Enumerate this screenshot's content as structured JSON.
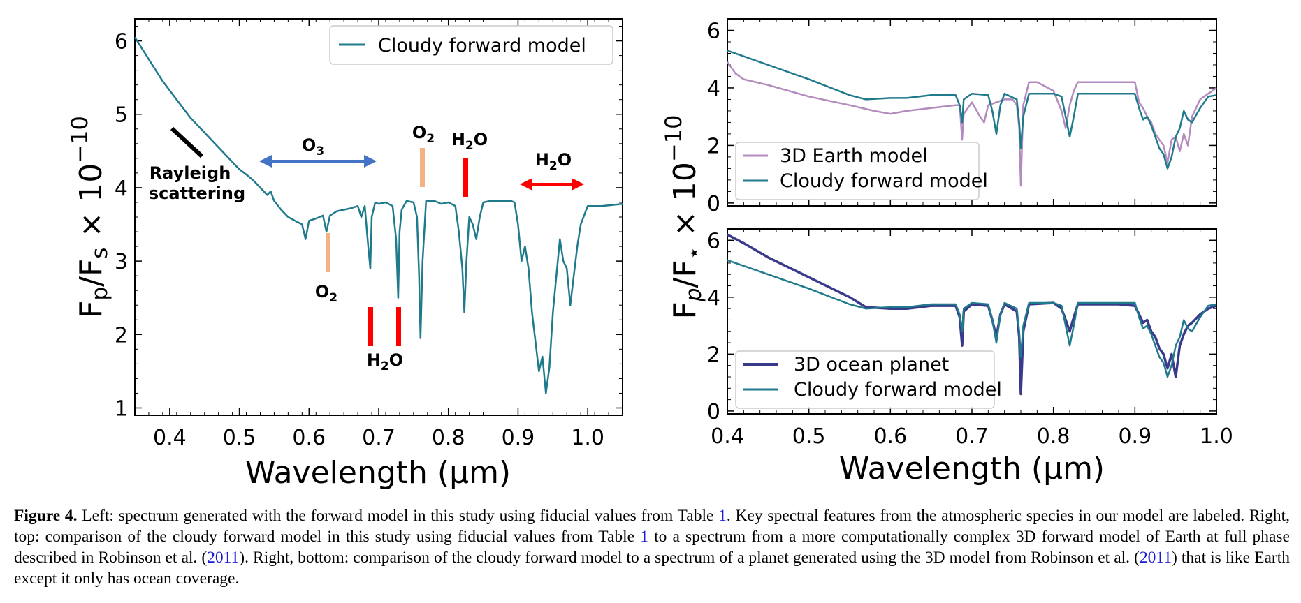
{
  "chart_data": [
    {
      "type": "line",
      "panel": "left",
      "xlabel": "Wavelength (μm)",
      "ylabel_main": "F",
      "ylabel_sub1": "p",
      "ylabel_mid": "/F",
      "ylabel_sub2": "s",
      "ylabel_times": " × 10",
      "ylabel_exp": "−10",
      "xlim": [
        0.35,
        1.05
      ],
      "ylim": [
        0.9,
        6.3
      ],
      "xticks": [
        "0.4",
        "0.5",
        "0.6",
        "0.7",
        "0.8",
        "0.9",
        "1.0"
      ],
      "yticks": [
        "1",
        "2",
        "3",
        "4",
        "5",
        "6"
      ],
      "legend_position": "top-right",
      "series": [
        {
          "name": "Cloudy forward model",
          "color": "#1f7a8c",
          "x": [
            0.35,
            0.37,
            0.39,
            0.41,
            0.43,
            0.45,
            0.47,
            0.49,
            0.5,
            0.51,
            0.52,
            0.53,
            0.54,
            0.545,
            0.55,
            0.56,
            0.57,
            0.58,
            0.59,
            0.595,
            0.6,
            0.61,
            0.62,
            0.625,
            0.63,
            0.64,
            0.65,
            0.66,
            0.67,
            0.675,
            0.68,
            0.685,
            0.688,
            0.69,
            0.695,
            0.7,
            0.71,
            0.72,
            0.725,
            0.728,
            0.73,
            0.733,
            0.74,
            0.75,
            0.755,
            0.758,
            0.76,
            0.763,
            0.768,
            0.78,
            0.79,
            0.8,
            0.81,
            0.815,
            0.82,
            0.823,
            0.826,
            0.83,
            0.835,
            0.84,
            0.845,
            0.85,
            0.86,
            0.87,
            0.88,
            0.89,
            0.895,
            0.9,
            0.905,
            0.91,
            0.915,
            0.92,
            0.925,
            0.93,
            0.935,
            0.94,
            0.945,
            0.95,
            0.955,
            0.96,
            0.965,
            0.97,
            0.975,
            0.98,
            0.985,
            0.99,
            1.0,
            1.02,
            1.05
          ],
          "y": [
            6.05,
            5.75,
            5.45,
            5.2,
            4.95,
            4.75,
            4.55,
            4.35,
            4.25,
            4.18,
            4.1,
            4.0,
            3.9,
            3.95,
            3.82,
            3.7,
            3.6,
            3.55,
            3.5,
            3.3,
            3.55,
            3.58,
            3.62,
            3.4,
            3.62,
            3.68,
            3.7,
            3.72,
            3.75,
            3.6,
            3.75,
            3.2,
            2.9,
            3.6,
            3.8,
            3.78,
            3.8,
            3.75,
            3.3,
            2.5,
            3.4,
            3.7,
            3.82,
            3.8,
            3.6,
            2.8,
            1.95,
            3.0,
            3.82,
            3.82,
            3.78,
            3.8,
            3.75,
            3.4,
            2.9,
            2.3,
            3.0,
            3.6,
            3.5,
            3.3,
            3.6,
            3.8,
            3.82,
            3.82,
            3.82,
            3.82,
            3.8,
            3.5,
            3.0,
            3.2,
            2.9,
            2.3,
            1.9,
            1.5,
            1.7,
            1.2,
            1.55,
            2.3,
            2.8,
            3.3,
            3.0,
            2.9,
            2.4,
            2.8,
            3.2,
            3.5,
            3.75,
            3.75,
            3.78
          ]
        }
      ],
      "annotations": [
        {
          "text": "Rayleigh",
          "text2": "scattering"
        },
        {
          "text": "O",
          "sub": "3"
        },
        {
          "text": "O",
          "sub": "2"
        },
        {
          "text": "O",
          "sub": "2"
        },
        {
          "text": "H",
          "sub": "2",
          "tail": "O"
        },
        {
          "text": "H",
          "sub": "2",
          "tail": "O"
        },
        {
          "text": "H",
          "sub": "2",
          "tail": "O"
        }
      ],
      "colors": {
        "arrow_o3": "#4472c4",
        "bar_o2": "#f4b183",
        "marker_h2o": "#ff0000",
        "rayleigh_mark": "#000000"
      }
    },
    {
      "type": "line",
      "panel": "right-top",
      "xlim": [
        0.4,
        1.0
      ],
      "ylim": [
        -0.1,
        6.4
      ],
      "yticks": [
        "0",
        "2",
        "4",
        "6"
      ],
      "legend_position": "bottom-left",
      "series": [
        {
          "name": "3D Earth model",
          "color": "#b38bbf",
          "x": [
            0.4,
            0.41,
            0.42,
            0.45,
            0.5,
            0.55,
            0.58,
            0.6,
            0.62,
            0.65,
            0.68,
            0.685,
            0.688,
            0.69,
            0.7,
            0.71,
            0.715,
            0.72,
            0.73,
            0.74,
            0.75,
            0.755,
            0.758,
            0.76,
            0.763,
            0.77,
            0.78,
            0.8,
            0.81,
            0.815,
            0.82,
            0.825,
            0.83,
            0.85,
            0.88,
            0.9,
            0.905,
            0.91,
            0.915,
            0.92,
            0.925,
            0.93,
            0.935,
            0.94,
            0.945,
            0.95,
            0.955,
            0.96,
            0.965,
            0.97,
            0.98,
            0.99,
            1.0
          ],
          "y": [
            4.9,
            4.5,
            4.3,
            4.1,
            3.7,
            3.4,
            3.2,
            3.1,
            3.2,
            3.3,
            3.4,
            3.4,
            2.2,
            3.1,
            3.5,
            3.0,
            2.8,
            3.4,
            3.5,
            3.6,
            3.6,
            3.4,
            2.6,
            0.6,
            3.4,
            4.2,
            4.2,
            3.9,
            3.2,
            2.6,
            3.4,
            3.9,
            4.2,
            4.2,
            4.2,
            4.2,
            3.5,
            3.3,
            3.0,
            2.8,
            2.4,
            2.2,
            2.0,
            1.4,
            2.2,
            2.3,
            1.8,
            2.4,
            2.0,
            3.0,
            3.6,
            3.8,
            4.0
          ]
        },
        {
          "name": "Cloudy forward model",
          "color": "#1f7a8c",
          "x": [
            0.4,
            0.45,
            0.5,
            0.55,
            0.57,
            0.6,
            0.62,
            0.65,
            0.68,
            0.685,
            0.688,
            0.69,
            0.7,
            0.72,
            0.725,
            0.73,
            0.735,
            0.74,
            0.755,
            0.758,
            0.76,
            0.763,
            0.77,
            0.8,
            0.81,
            0.815,
            0.82,
            0.825,
            0.83,
            0.85,
            0.88,
            0.9,
            0.905,
            0.91,
            0.915,
            0.92,
            0.925,
            0.93,
            0.935,
            0.94,
            0.945,
            0.95,
            0.955,
            0.96,
            0.965,
            0.97,
            0.98,
            0.99,
            1.0
          ],
          "y": [
            5.3,
            4.8,
            4.3,
            3.75,
            3.6,
            3.65,
            3.65,
            3.75,
            3.75,
            3.4,
            2.8,
            3.6,
            3.8,
            3.75,
            3.2,
            2.4,
            3.4,
            3.8,
            3.6,
            2.8,
            1.9,
            3.0,
            3.8,
            3.8,
            3.7,
            3.0,
            2.3,
            3.0,
            3.8,
            3.8,
            3.8,
            3.8,
            3.3,
            2.9,
            3.0,
            2.7,
            2.3,
            1.9,
            1.7,
            1.2,
            1.6,
            2.3,
            2.6,
            3.2,
            2.9,
            2.8,
            3.3,
            3.7,
            3.75
          ]
        }
      ]
    },
    {
      "type": "line",
      "panel": "right-bottom",
      "xlabel": "Wavelength (μm)",
      "ylabel_main": "F",
      "ylabel_sub1": "p",
      "ylabel_mid": "/F",
      "ylabel_sub2": "⋆",
      "ylabel_times": " × 10",
      "ylabel_exp": "−10",
      "xlim": [
        0.4,
        1.0
      ],
      "ylim": [
        -0.1,
        6.4
      ],
      "xticks": [
        "0.4",
        "0.5",
        "0.6",
        "0.7",
        "0.8",
        "0.9",
        "1.0"
      ],
      "yticks": [
        "0",
        "2",
        "4",
        "6"
      ],
      "legend_position": "bottom-left",
      "series": [
        {
          "name": "3D ocean planet",
          "color": "#3a3a8c",
          "x": [
            0.4,
            0.42,
            0.45,
            0.5,
            0.55,
            0.57,
            0.6,
            0.62,
            0.65,
            0.68,
            0.685,
            0.688,
            0.69,
            0.7,
            0.72,
            0.725,
            0.73,
            0.735,
            0.74,
            0.755,
            0.758,
            0.76,
            0.763,
            0.77,
            0.8,
            0.81,
            0.815,
            0.82,
            0.825,
            0.83,
            0.85,
            0.88,
            0.9,
            0.905,
            0.91,
            0.915,
            0.92,
            0.925,
            0.93,
            0.935,
            0.94,
            0.945,
            0.95,
            0.955,
            0.96,
            0.965,
            0.97,
            0.98,
            0.99,
            1.0
          ],
          "y": [
            6.2,
            5.9,
            5.4,
            4.7,
            4.0,
            3.65,
            3.6,
            3.6,
            3.7,
            3.7,
            3.3,
            2.3,
            3.5,
            3.75,
            3.7,
            3.2,
            2.6,
            3.4,
            3.75,
            3.5,
            2.6,
            0.6,
            2.8,
            3.75,
            3.8,
            3.6,
            3.2,
            2.8,
            3.3,
            3.75,
            3.75,
            3.75,
            3.7,
            3.4,
            3.1,
            3.2,
            2.8,
            2.6,
            2.2,
            2.0,
            1.5,
            2.0,
            1.2,
            2.3,
            2.7,
            3.0,
            3.1,
            3.4,
            3.6,
            3.7
          ]
        },
        {
          "name": "Cloudy forward model",
          "color": "#1f7a8c",
          "x": [
            0.4,
            0.45,
            0.5,
            0.55,
            0.57,
            0.6,
            0.62,
            0.65,
            0.68,
            0.685,
            0.688,
            0.69,
            0.7,
            0.72,
            0.725,
            0.73,
            0.735,
            0.74,
            0.755,
            0.758,
            0.76,
            0.763,
            0.77,
            0.8,
            0.81,
            0.815,
            0.82,
            0.825,
            0.83,
            0.85,
            0.88,
            0.9,
            0.905,
            0.91,
            0.915,
            0.92,
            0.925,
            0.93,
            0.935,
            0.94,
            0.945,
            0.95,
            0.955,
            0.96,
            0.965,
            0.97,
            0.98,
            0.99,
            1.0
          ],
          "y": [
            5.3,
            4.8,
            4.3,
            3.75,
            3.6,
            3.65,
            3.65,
            3.75,
            3.75,
            3.4,
            2.8,
            3.6,
            3.8,
            3.75,
            3.2,
            2.4,
            3.4,
            3.8,
            3.6,
            2.8,
            1.9,
            3.0,
            3.8,
            3.8,
            3.7,
            3.0,
            2.3,
            3.0,
            3.8,
            3.8,
            3.8,
            3.8,
            3.3,
            2.9,
            3.0,
            2.7,
            2.3,
            1.9,
            1.7,
            1.2,
            1.6,
            2.3,
            2.6,
            3.2,
            2.9,
            2.8,
            3.3,
            3.7,
            3.75
          ]
        }
      ]
    }
  ],
  "caption": {
    "label": "Figure 4.",
    "p1": " Left: spectrum generated with the forward model in this study using fiducial values from Table ",
    "ref1": "1",
    "p2": ". Key spectral features from the atmospheric species in our model are labeled. Right, top: comparison of the cloudy forward model in this study using fiducial values from Table ",
    "ref2": "1",
    "p3": " to a spectrum from a more computationally complex 3D forward model of Earth at full phase described in Robinson et al. (",
    "ref3": "2011",
    "p4": "). Right, bottom: comparison of the cloudy forward model to a spectrum of a planet generated using the 3D model from Robinson et al. (",
    "ref4": "2011",
    "p5": ") that is like Earth except it only has ocean coverage."
  }
}
